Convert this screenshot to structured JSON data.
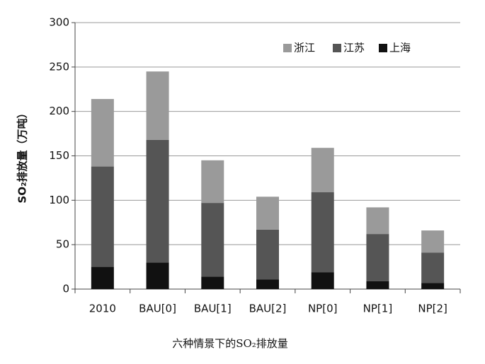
{
  "chart_data": {
    "type": "bar",
    "stacked": true,
    "y_label": "SO₂排放量（万吨）",
    "caption": "六种情景下的SO₂排放量",
    "categories": [
      "2010",
      "BAU[0]",
      "BAU[1]",
      "BAU[2]",
      "NP[0]",
      "NP[1]",
      "NP[2]"
    ],
    "series": [
      {
        "name": "浙江",
        "color": "#9a9a9a",
        "values": [
          76,
          77,
          48,
          37,
          50,
          30,
          25
        ]
      },
      {
        "name": "江苏",
        "color": "#555555",
        "values": [
          113,
          138,
          83,
          56,
          90,
          53,
          34
        ]
      },
      {
        "name": "上海",
        "color": "#111111",
        "values": [
          25,
          30,
          14,
          11,
          19,
          9,
          7
        ]
      }
    ],
    "ylim": [
      0,
      300
    ],
    "yticks": [
      0,
      50,
      100,
      150,
      200,
      250,
      300
    ],
    "grid": true
  }
}
